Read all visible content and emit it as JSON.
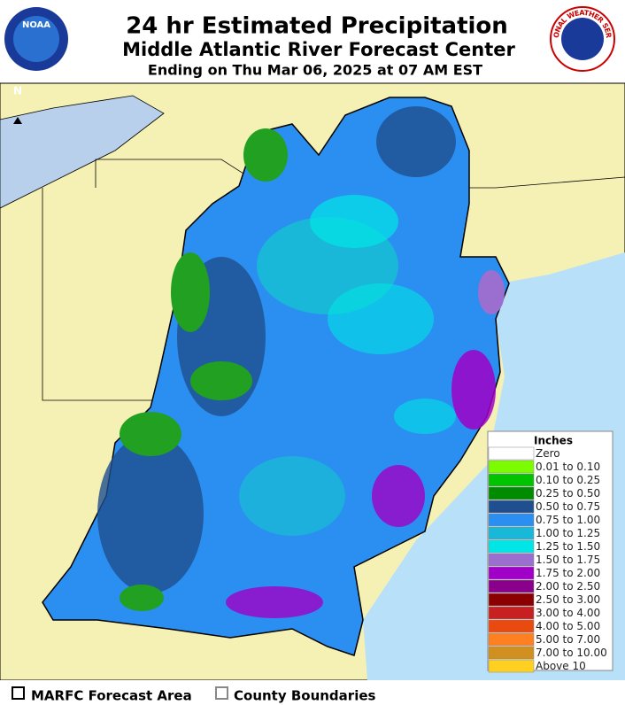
{
  "header": {
    "title": "24 hr Estimated Precipitation",
    "subtitle": "Middle Atlantic River Forecast Center",
    "period": "Ending on Thu Mar 06, 2025 at 07 AM EST"
  },
  "logos": {
    "noaa": "NOAA",
    "nws": "NATIONAL WEATHER SERVICE"
  },
  "map": {
    "north_label": "N"
  },
  "legend": {
    "title": "Inches",
    "entries": [
      {
        "label": "Zero",
        "color": "#ffffff"
      },
      {
        "label": "0.01 to 0.10",
        "color": "#7cfc00"
      },
      {
        "label": "0.10 to 0.25",
        "color": "#00c400"
      },
      {
        "label": "0.25 to 0.50",
        "color": "#008b00"
      },
      {
        "label": "0.50 to 0.75",
        "color": "#1f4f8f"
      },
      {
        "label": "0.75 to 1.00",
        "color": "#2a8ff0"
      },
      {
        "label": "1.00 to 1.25",
        "color": "#1ab8d8"
      },
      {
        "label": "1.25 to 1.50",
        "color": "#00e5e5"
      },
      {
        "label": "1.50 to 1.75",
        "color": "#9a6fd0"
      },
      {
        "label": "1.75 to 2.00",
        "color": "#a000c8"
      },
      {
        "label": "2.00 to 2.50",
        "color": "#8b008b"
      },
      {
        "label": "2.50 to 3.00",
        "color": "#8b0000"
      },
      {
        "label": "3.00 to 4.00",
        "color": "#c82020"
      },
      {
        "label": "4.00 to 5.00",
        "color": "#e84a10"
      },
      {
        "label": "5.00 to 7.00",
        "color": "#ff8020"
      },
      {
        "label": "7.00 to 10.00",
        "color": "#d09020"
      },
      {
        "label": "Above 10",
        "color": "#ffd020"
      }
    ]
  },
  "footer": {
    "items": [
      "MARFC Forecast Area",
      "County Boundaries"
    ]
  }
}
